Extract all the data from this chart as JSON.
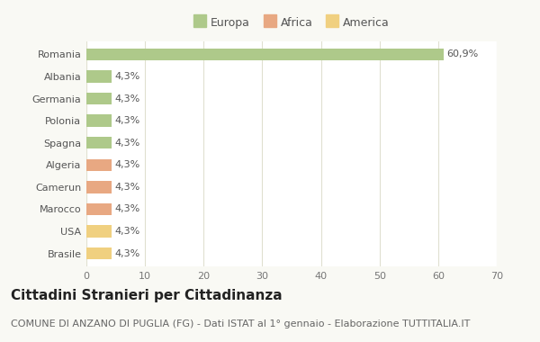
{
  "countries": [
    "Romania",
    "Albania",
    "Germania",
    "Polonia",
    "Spagna",
    "Algeria",
    "Camerun",
    "Marocco",
    "USA",
    "Brasile"
  ],
  "values": [
    60.9,
    4.3,
    4.3,
    4.3,
    4.3,
    4.3,
    4.3,
    4.3,
    4.3,
    4.3
  ],
  "labels": [
    "60,9%",
    "4,3%",
    "4,3%",
    "4,3%",
    "4,3%",
    "4,3%",
    "4,3%",
    "4,3%",
    "4,3%",
    "4,3%"
  ],
  "colors": [
    "#aec98a",
    "#aec98a",
    "#aec98a",
    "#aec98a",
    "#aec98a",
    "#e8a882",
    "#e8a882",
    "#e8a882",
    "#f0d080",
    "#f0d080"
  ],
  "legend_labels": [
    "Europa",
    "Africa",
    "America"
  ],
  "legend_colors": [
    "#aec98a",
    "#e8a882",
    "#f0d080"
  ],
  "title": "Cittadini Stranieri per Cittadinanza",
  "subtitle": "COMUNE DI ANZANO DI PUGLIA (FG) - Dati ISTAT al 1° gennaio - Elaborazione TUTTITALIA.IT",
  "xlim": [
    0,
    70
  ],
  "xticks": [
    0,
    10,
    20,
    30,
    40,
    50,
    60,
    70
  ],
  "background_color": "#f9f9f4",
  "plot_bg_color": "#ffffff",
  "grid_color": "#e0e0d0",
  "title_fontsize": 11,
  "subtitle_fontsize": 8,
  "label_fontsize": 8,
  "tick_fontsize": 8,
  "legend_fontsize": 9
}
